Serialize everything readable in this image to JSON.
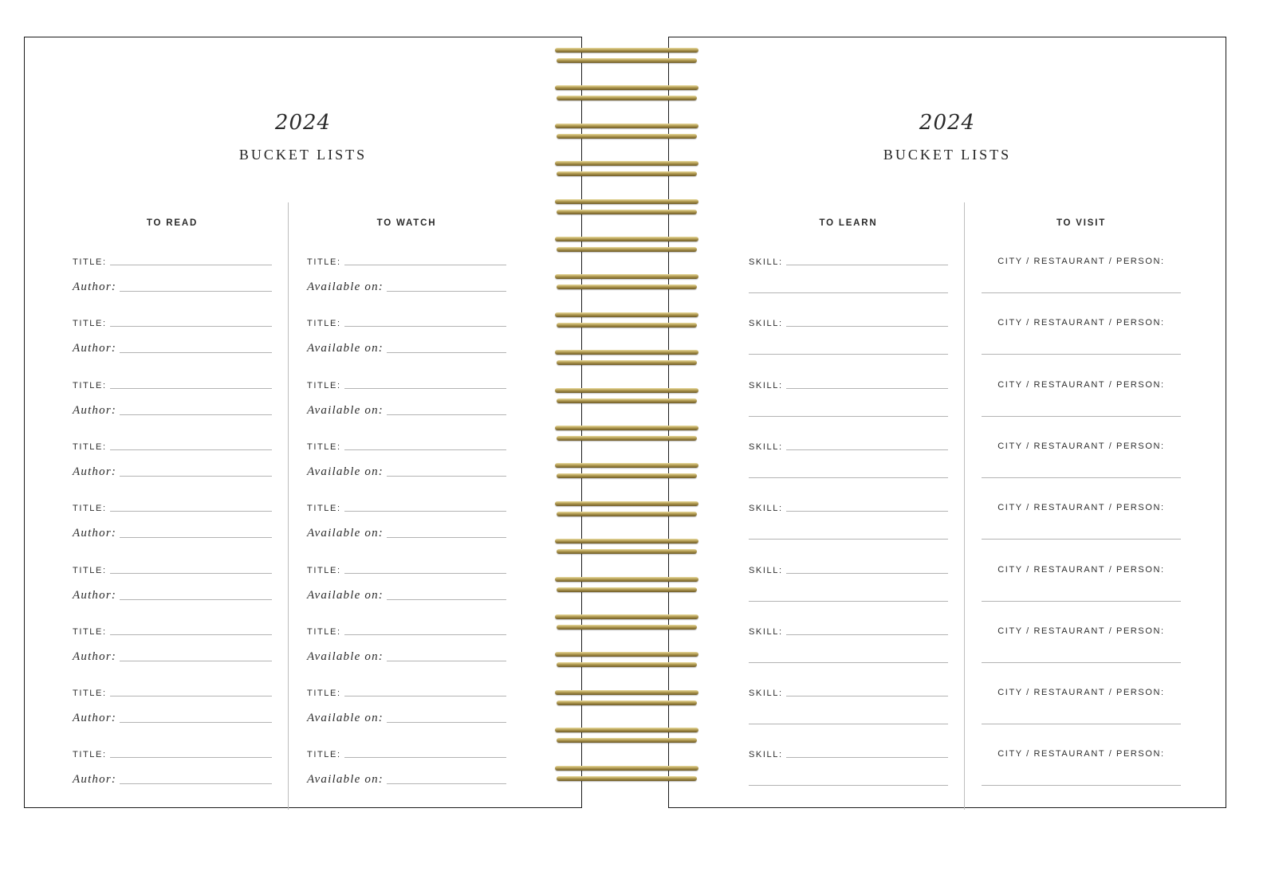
{
  "left_page": {
    "year": "2024",
    "title": "BUCKET LISTS",
    "columns": [
      {
        "heading": "TO READ",
        "line1_label": "TITLE:",
        "line2_label": "Author:"
      },
      {
        "heading": "TO WATCH",
        "line1_label": "TITLE:",
        "line2_label": "Available on:"
      }
    ]
  },
  "right_page": {
    "year": "2024",
    "title": "BUCKET LISTS",
    "columns": [
      {
        "heading": "TO LEARN",
        "line1_label": "SKILL:"
      },
      {
        "heading": "TO VISIT",
        "line1_label": "CITY / RESTAURANT / PERSON:"
      }
    ]
  },
  "entries_per_column": 9,
  "colors": {
    "ring_gold": "#b39c52",
    "rule_gray": "#b3b3b3",
    "border": "#1a1a1a"
  }
}
